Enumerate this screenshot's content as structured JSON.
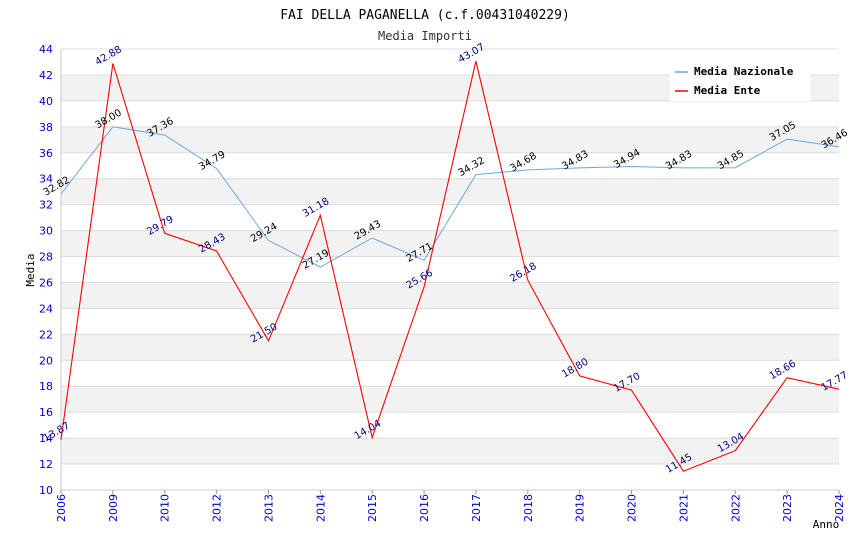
{
  "header": {
    "title": "FAI DELLA PAGANELLA (c.f.00431040229)",
    "subtitle": "Media Importi"
  },
  "colors": {
    "nazionale": "#6aa8e0",
    "ente": "#ff0000",
    "nazionale_label": "#000000",
    "ente_label": "#00007f",
    "tick": "#0000cc",
    "band": "#f2f2f2",
    "grid": "#dcdcdc"
  },
  "chart_data": {
    "type": "line",
    "title": "FAI DELLA PAGANELLA (c.f.00431040229)",
    "subtitle": "Media Importi",
    "xlabel": "Anno",
    "ylabel": "Media",
    "ylim": [
      10,
      44
    ],
    "yticks": [
      "10",
      "12",
      "14",
      "16",
      "18",
      "20",
      "22",
      "24",
      "26",
      "28",
      "30",
      "32",
      "34",
      "36",
      "38",
      "40",
      "42",
      "44"
    ],
    "categories": [
      "2006",
      "2009",
      "2010",
      "2012",
      "2013",
      "2014",
      "2015",
      "2016",
      "2017",
      "2018",
      "2019",
      "2020",
      "2021",
      "2022",
      "2023",
      "2024"
    ],
    "series": [
      {
        "name": "Media Nazionale",
        "values": [
          32.82,
          38.0,
          37.36,
          34.79,
          29.24,
          27.19,
          29.43,
          27.71,
          34.32,
          34.68,
          34.83,
          34.94,
          34.83,
          34.85,
          37.05,
          36.46
        ],
        "labels": [
          "32.82",
          "38.00",
          "37.36",
          "34.79",
          "29.24",
          "27.19",
          "29.43",
          "27.71",
          "34.32",
          "34.68",
          "34.83",
          "34.94",
          "34.83",
          "34.85",
          "37.05",
          "36.46"
        ]
      },
      {
        "name": "Media Ente",
        "values": [
          13.87,
          42.88,
          29.79,
          28.43,
          21.5,
          31.18,
          14.04,
          25.66,
          43.07,
          26.18,
          18.8,
          17.7,
          11.45,
          13.04,
          18.66,
          17.77
        ],
        "labels": [
          "13.87",
          "42.88",
          "29.79",
          "28.43",
          "21.50",
          "31.18",
          "14.04",
          "25.66",
          "43.07",
          "26.18",
          "18.80",
          "17.70",
          "11.45",
          "13.04",
          "18.66",
          "17.77"
        ]
      }
    ],
    "grid": true,
    "legend_position": "top-right"
  }
}
